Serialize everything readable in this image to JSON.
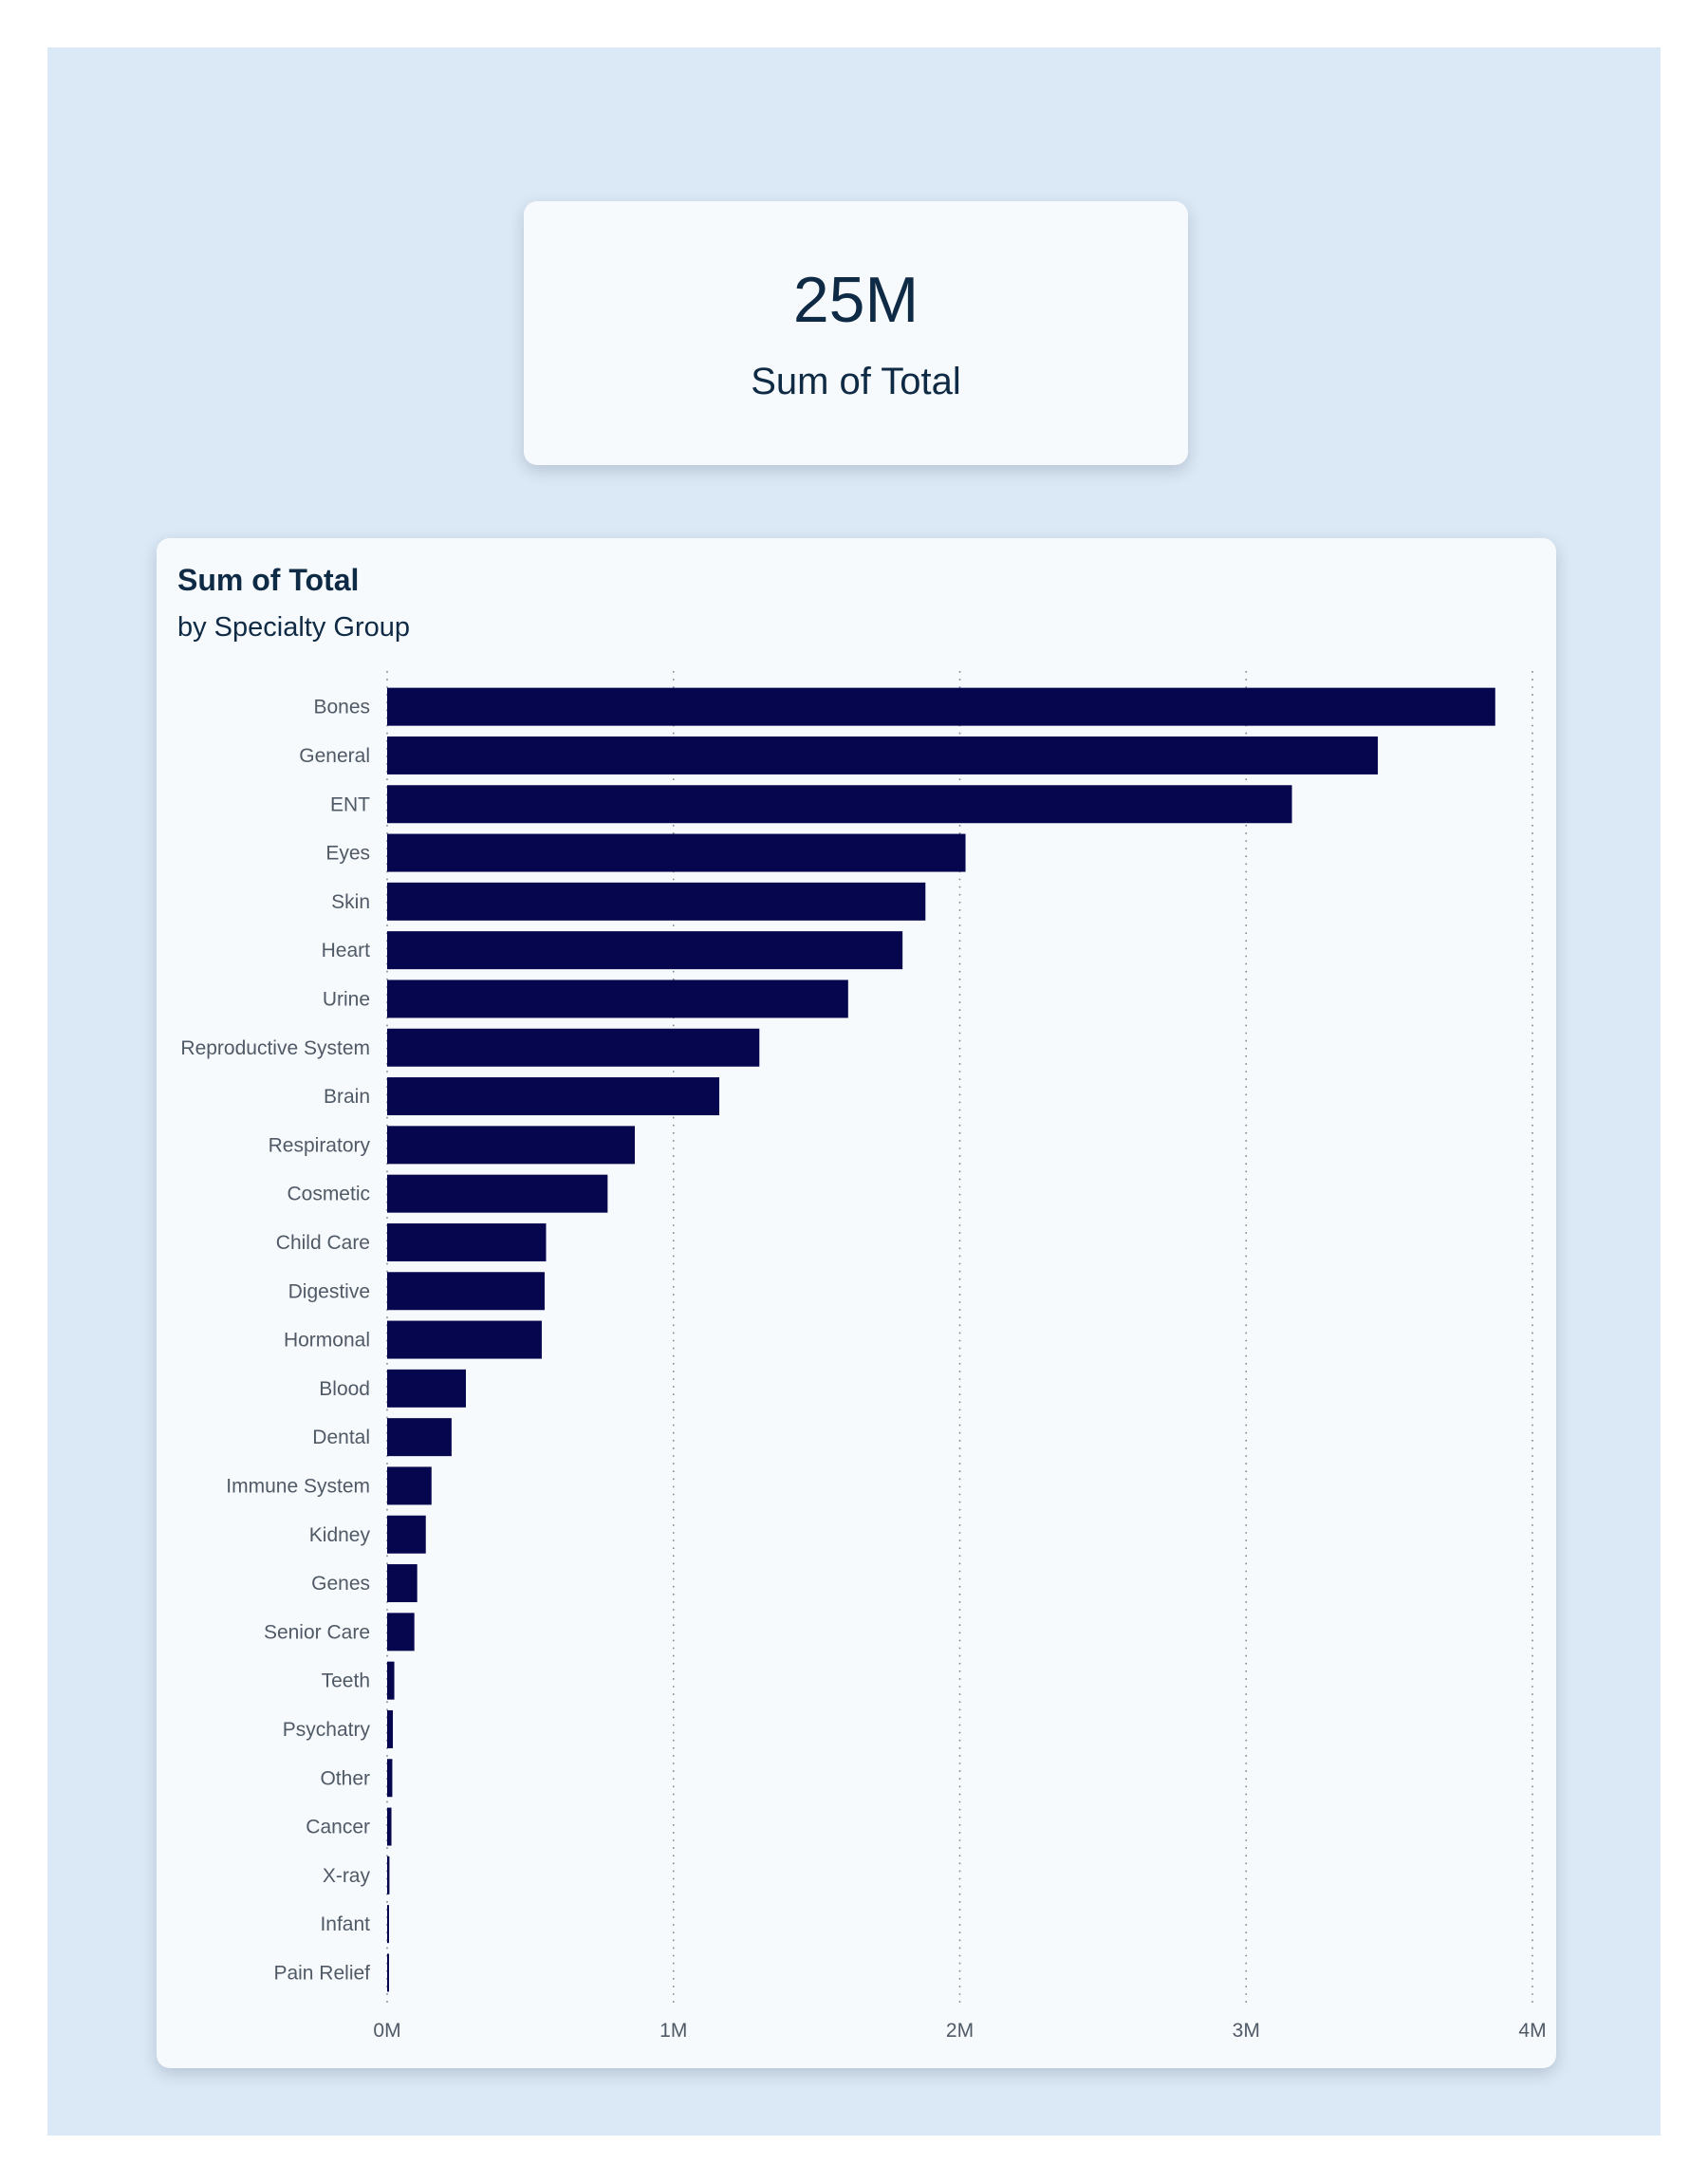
{
  "kpi": {
    "value": "25M",
    "label": "Sum of Total"
  },
  "colors": {
    "background": "#dbe8f5",
    "card": "#f7fafd",
    "bar": "#06064f",
    "text_dark": "#0f2a44",
    "text_axis": "#505a66",
    "gridline": "#7a8694"
  },
  "chart_data": {
    "type": "bar",
    "orientation": "horizontal",
    "title": "Sum of Total",
    "subtitle": "by Specialty Group",
    "categories": [
      "Bones",
      "General",
      "ENT",
      "Eyes",
      "Skin",
      "Heart",
      "Urine",
      "Reproductive System",
      "Brain",
      "Respiratory",
      "Cosmetic",
      "Child Care",
      "Digestive",
      "Hormonal",
      "Blood",
      "Dental",
      "Immune System",
      "Kidney",
      "Genes",
      "Senior Care",
      "Teeth",
      "Psychatry",
      "Other",
      "Cancer",
      "X-ray",
      "Infant",
      "Pain Relief"
    ],
    "values": [
      3870000,
      3460000,
      3160000,
      2020000,
      1880000,
      1800000,
      1610000,
      1300000,
      1160000,
      865000,
      770000,
      555000,
      550000,
      540000,
      275000,
      225000,
      155000,
      135000,
      105000,
      95000,
      25000,
      20000,
      18000,
      15000,
      8000,
      6000,
      5000
    ],
    "xlim": [
      0,
      4000000
    ],
    "xticks": [
      0,
      1000000,
      2000000,
      3000000,
      4000000
    ],
    "xtick_labels": [
      "0M",
      "1M",
      "2M",
      "3M",
      "4M"
    ],
    "xlabel": "",
    "ylabel": "",
    "grid": "vertical dotted",
    "legend": "none"
  }
}
